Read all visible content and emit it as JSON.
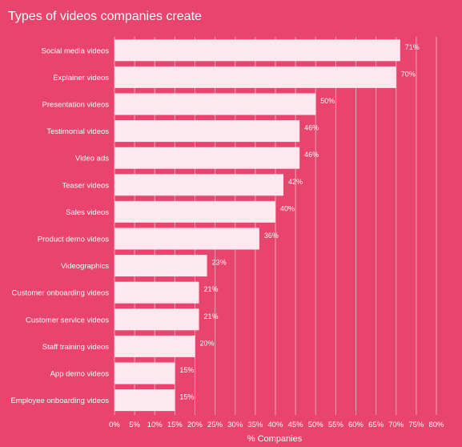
{
  "chart_data": {
    "type": "bar",
    "orientation": "horizontal",
    "title": "Types of videos companies create",
    "xlabel": "% Companies",
    "ylabel": "",
    "xlim": [
      0,
      80
    ],
    "xticks": [
      "0%",
      "5%",
      "10%",
      "15%",
      "20%",
      "25%",
      "30%",
      "35%",
      "40%",
      "45%",
      "50%",
      "55%",
      "60%",
      "65%",
      "70%",
      "75%",
      "80%"
    ],
    "grid": true,
    "categories": [
      "Social media videos",
      "Explainer videos",
      "Presentation videos",
      "Testimonial videos",
      "Video ads",
      "Teaser videos",
      "Sales videos",
      "Product demo videos",
      "Videographics",
      "Customer onboarding videos",
      "Customer service videos",
      "Staff training videos",
      "App demo videos",
      "Employee onboarding videos"
    ],
    "values": [
      71,
      70,
      50,
      46,
      46,
      42,
      40,
      36,
      23,
      21,
      21,
      20,
      15,
      15
    ],
    "data_labels": [
      "71%",
      "70%",
      "50%",
      "46%",
      "46%",
      "42%",
      "40%",
      "36%",
      "23%",
      "21%",
      "21%",
      "20%",
      "15%",
      "15%"
    ]
  },
  "colors": {
    "background": "#e8446d",
    "bar": "#fce8ee",
    "grid": "#f4a3b8",
    "text": "#ffffff"
  }
}
